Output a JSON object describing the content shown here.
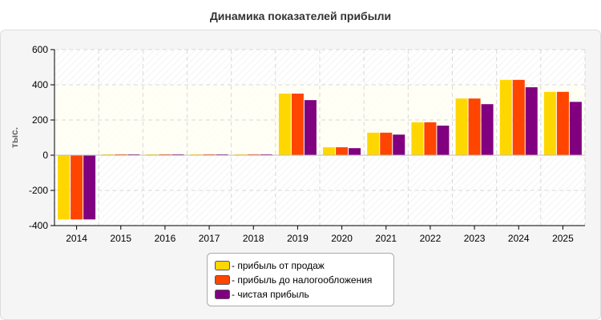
{
  "chart_data": {
    "type": "bar",
    "title": "Динамика показателей прибыли",
    "ylabel": "тыс.",
    "xlabel": "",
    "ylim": [
      -400,
      600
    ],
    "yticks": [
      -400,
      -200,
      0,
      200,
      400,
      600
    ],
    "grid": true,
    "legend_position": "bottom",
    "categories": [
      "2014",
      "2015",
      "2016",
      "2017",
      "2018",
      "2019",
      "2020",
      "2021",
      "2022",
      "2023",
      "2024",
      "2025"
    ],
    "series": [
      {
        "name": "прибыль от продаж",
        "color": "#ffd700",
        "values": [
          -365,
          5,
          5,
          5,
          5,
          350,
          45,
          128,
          187,
          322,
          428,
          360
        ]
      },
      {
        "name": "прибыль до налогообложения",
        "color": "#ff4500",
        "values": [
          -365,
          5,
          5,
          5,
          5,
          350,
          45,
          128,
          187,
          322,
          428,
          360
        ]
      },
      {
        "name": "чистая прибыль",
        "color": "#800080",
        "values": [
          -365,
          5,
          5,
          5,
          5,
          313,
          40,
          117,
          168,
          290,
          386,
          303
        ]
      }
    ],
    "legend_prefix": "- "
  }
}
